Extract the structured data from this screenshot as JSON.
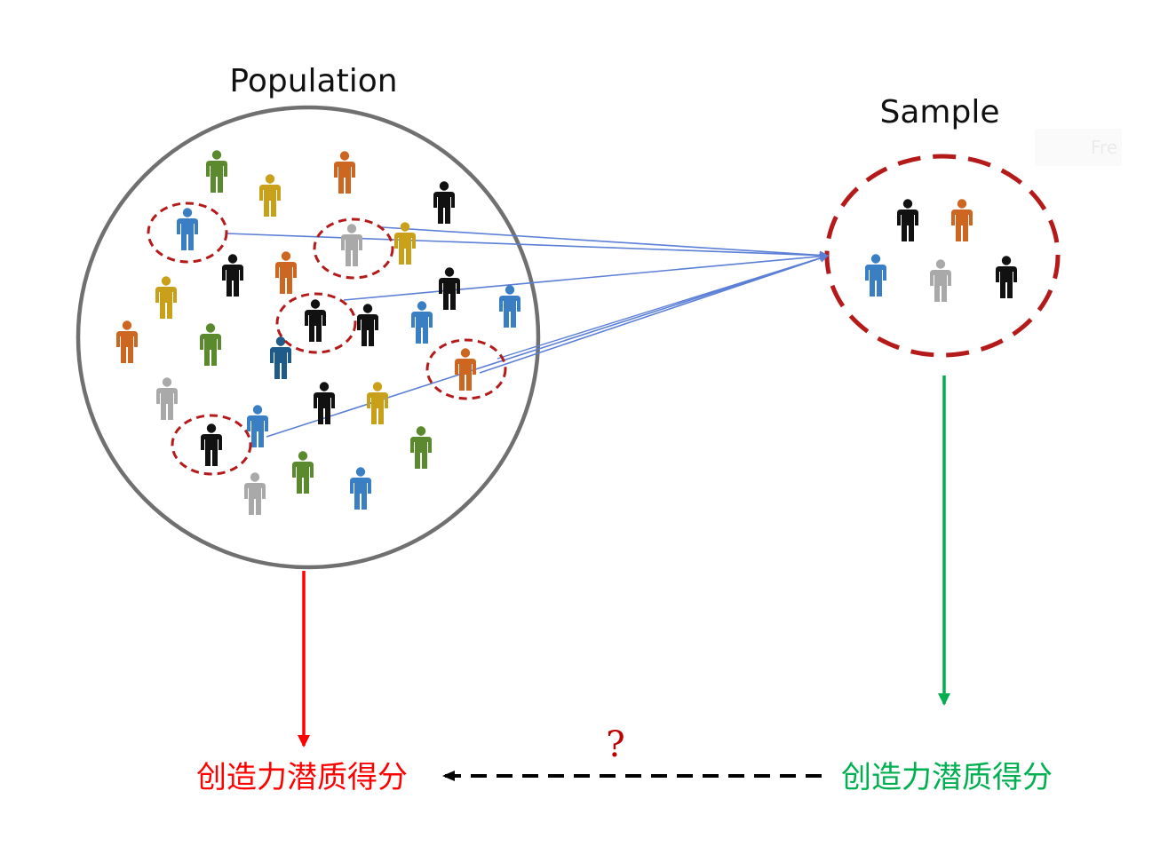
{
  "population": {
    "title": "Population"
  },
  "sample": {
    "title": "Sample"
  },
  "faint_watermark": "Fre",
  "bottom": {
    "left_label": "创造力潜质得分",
    "right_label": "创造力潜质得分",
    "question_mark": "?"
  },
  "colors": {
    "circle_gray": "#707070",
    "sample_ring": "#b41a1a",
    "arrow_blue": "#5b7fd6",
    "red_arrow": "#ff0000",
    "green_arrow": "#00b050",
    "question": "#c00000",
    "label_red": "#ff0000",
    "label_green": "#00b050",
    "person_green": "#5b8a2e",
    "person_orange": "#cc6620",
    "person_gold": "#c9a019",
    "person_black": "#111111",
    "person_blue": "#3a7fc4",
    "person_gray": "#a9a9a9",
    "person_navy": "#1e5a8a"
  },
  "population_people": [
    "green",
    "gold",
    "orange",
    "black",
    "blue",
    "gray",
    "gold",
    "black",
    "orange",
    "gold",
    "black",
    "blue",
    "orange",
    "green",
    "black",
    "black",
    "navy",
    "blue",
    "orange",
    "gray",
    "blue",
    "black",
    "gold",
    "black",
    "green",
    "blue",
    "gray",
    "green",
    "navy",
    "green"
  ],
  "highlighted_people": [
    "blue",
    "gray",
    "black",
    "orange",
    "black"
  ],
  "sample_people": [
    "black",
    "orange",
    "blue",
    "gray",
    "black"
  ]
}
